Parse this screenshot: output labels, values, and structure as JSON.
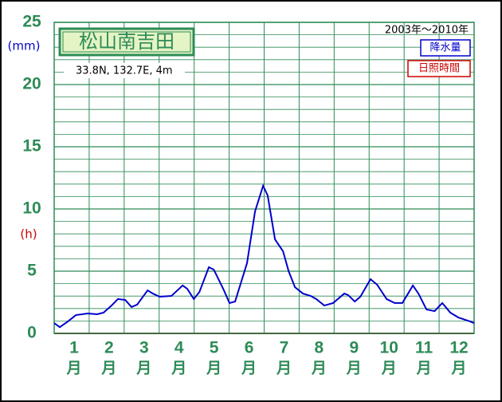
{
  "chart_data": {
    "type": "line",
    "title": "松山南吉田",
    "location": "33.8N, 132.7E, 4m",
    "period": "2003年〜2010年",
    "y_unit": "(mm)",
    "y_unit_color": "#0000cc",
    "y2_unit": "(h)",
    "y2_unit_color": "#cc0000",
    "x_unit": "月",
    "xlim": [
      0.5,
      12.5
    ],
    "xticks": [
      1,
      2,
      3,
      4,
      5,
      6,
      7,
      8,
      9,
      10,
      11,
      12
    ],
    "ylim": [
      0,
      25
    ],
    "yticks": [
      0,
      5,
      10,
      15,
      20,
      25
    ],
    "minor_grid_step": 1,
    "grid": true,
    "series": [
      {
        "name": "降水量",
        "color": "#0000cc",
        "x": [
          0.5,
          0.66,
          0.89,
          1.12,
          1.46,
          1.73,
          1.91,
          2.14,
          2.32,
          2.53,
          2.71,
          2.87,
          3.17,
          3.32,
          3.51,
          3.85,
          4.17,
          4.3,
          4.49,
          4.65,
          4.92,
          5.06,
          5.33,
          5.51,
          5.67,
          6.01,
          6.24,
          6.47,
          6.6,
          6.81,
          7.04,
          7.2,
          7.38,
          7.61,
          7.83,
          7.99,
          8.22,
          8.47,
          8.79,
          8.9,
          9.09,
          9.25,
          9.54,
          9.73,
          10.0,
          10.23,
          10.45,
          10.75,
          10.91,
          11.14,
          11.37,
          11.59,
          11.82,
          12.05,
          12.39,
          12.5
        ],
        "values": [
          0.83,
          0.5,
          0.96,
          1.47,
          1.6,
          1.54,
          1.67,
          2.24,
          2.76,
          2.69,
          2.12,
          2.31,
          3.46,
          3.2,
          2.95,
          3.01,
          3.85,
          3.59,
          2.76,
          3.33,
          5.32,
          5.13,
          3.59,
          2.44,
          2.56,
          5.64,
          9.81,
          11.86,
          11.09,
          7.56,
          6.6,
          5.0,
          3.72,
          3.2,
          3.01,
          2.76,
          2.24,
          2.44,
          3.2,
          3.08,
          2.56,
          2.95,
          4.36,
          3.91,
          2.76,
          2.44,
          2.44,
          3.85,
          3.2,
          1.92,
          1.79,
          2.44,
          1.67,
          1.28,
          0.96,
          0.83
        ]
      }
    ],
    "second_legend_entry": {
      "name": "日照時間",
      "color": "#cc0000"
    }
  }
}
